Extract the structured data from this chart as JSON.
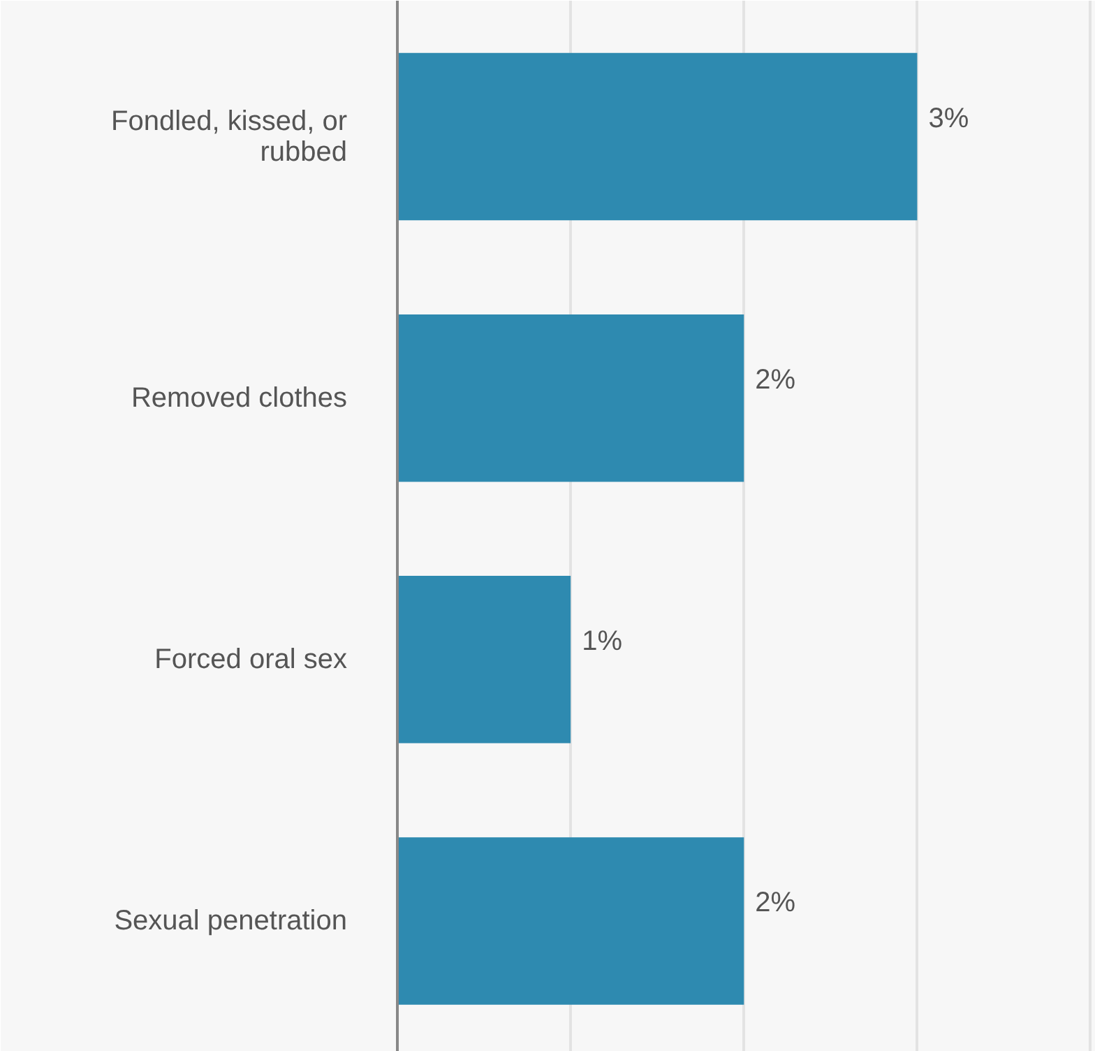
{
  "chart_data": {
    "type": "bar",
    "orientation": "horizontal",
    "categories": [
      "Fondled, kissed, or rubbed",
      "Removed clothes",
      "Forced oral sex",
      "Sexual penetration"
    ],
    "values": [
      3,
      2,
      1,
      2
    ],
    "value_labels": [
      "3%",
      "2%",
      "1%",
      "2%"
    ],
    "color": "#2e8ab0",
    "xlim": [
      0,
      4.03
    ],
    "xticks": [
      {
        "value": 1,
        "label": null
      },
      {
        "value": 2,
        "label": null
      },
      {
        "value": 3,
        "label": null
      },
      {
        "value": 4,
        "label": null
      }
    ],
    "grid": "x",
    "tick_labels": "y"
  }
}
